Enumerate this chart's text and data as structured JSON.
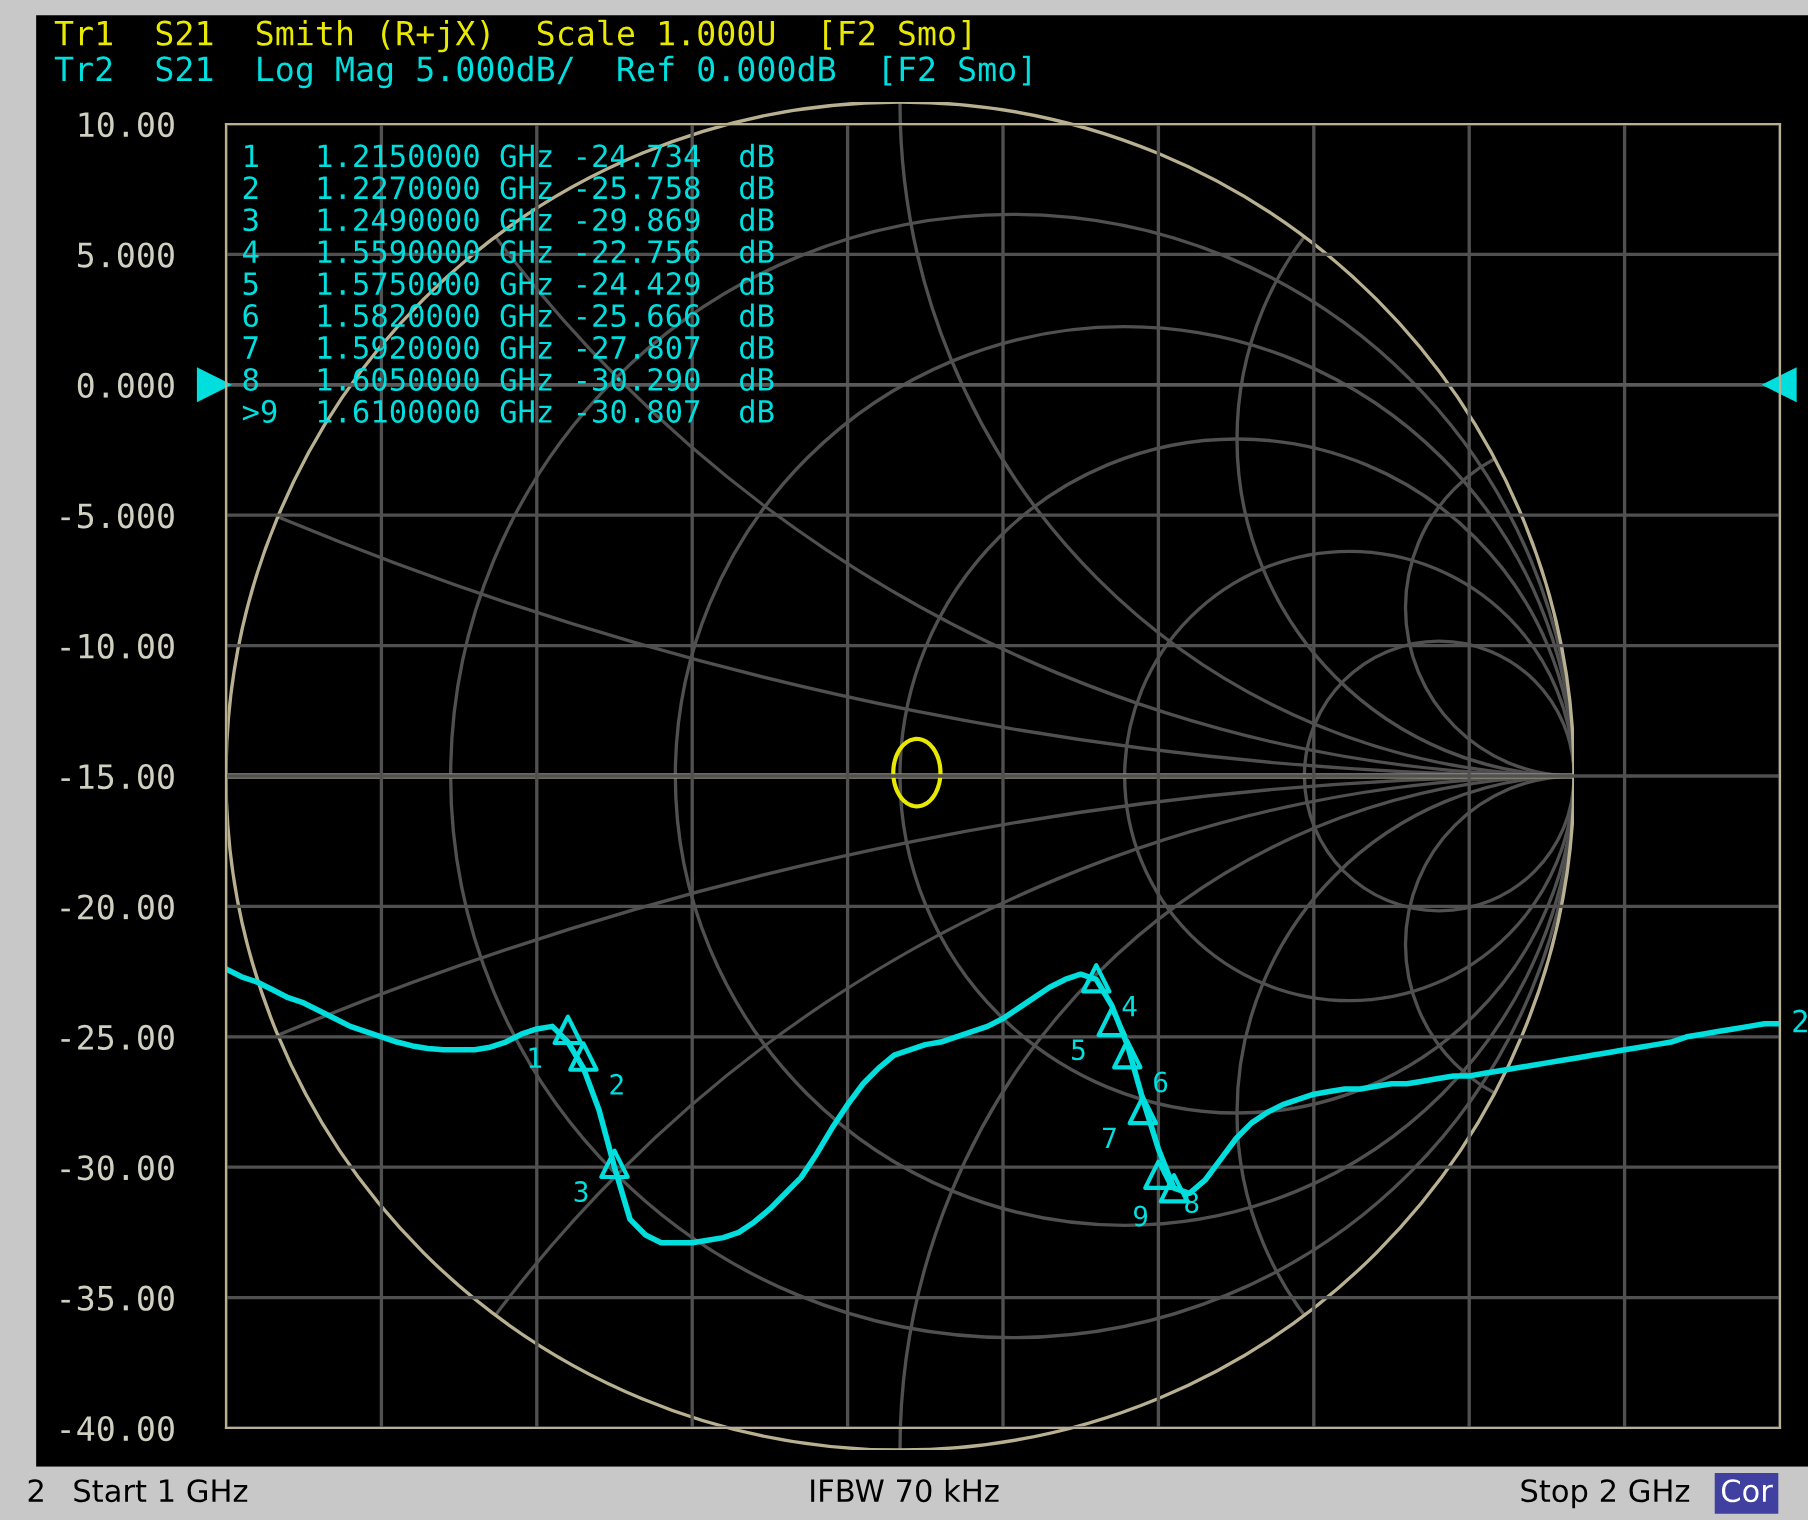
{
  "chart_data": {
    "type": "line",
    "title": "Tr1  S21  Smith (R+jX)  Scale 1.000U  [F2 Smo]",
    "subtitle": "Tr2  S21  Log Mag 5.000dB/  Ref 0.000dB  [F2 Smo]",
    "categories": [
      null,
      null,
      null,
      null,
      null,
      null,
      null,
      null,
      null,
      null,
      null,
      null,
      null,
      null,
      null,
      null,
      null,
      null,
      null,
      null,
      null,
      null,
      null,
      null,
      null,
      null,
      null,
      null,
      null,
      null,
      null,
      null,
      null,
      null,
      null,
      null,
      null,
      null,
      null,
      null,
      null,
      null,
      null,
      null,
      null,
      null,
      null,
      null,
      null,
      null,
      null,
      null,
      null,
      null,
      null,
      null,
      null,
      null,
      null,
      null,
      null,
      null,
      null,
      null,
      null,
      null,
      null,
      null,
      null,
      null,
      null,
      null,
      null,
      null,
      null,
      null,
      null,
      null,
      null,
      null,
      null,
      null,
      null,
      null,
      null,
      null,
      null,
      null,
      null,
      null,
      null,
      null,
      null,
      null,
      null,
      null,
      null,
      null,
      null,
      null,
      null
    ],
    "ylim": [
      -40,
      10
    ],
    "yticks": [
      {
        "value": 10,
        "label": "10.00"
      },
      {
        "value": 5,
        "label": "5.000"
      },
      {
        "value": 0,
        "label": "0.000"
      },
      {
        "value": -5,
        "label": "-5.000"
      },
      {
        "value": -10,
        "label": "-10.00"
      },
      {
        "value": -15,
        "label": "-15.00"
      },
      {
        "value": -20,
        "label": "-20.00"
      },
      {
        "value": -25,
        "label": "-25.00"
      },
      {
        "value": -30,
        "label": "-30.00"
      },
      {
        "value": -35,
        "label": "-35.00"
      },
      {
        "value": -40,
        "label": "-40.00"
      }
    ],
    "tick_labels": "y",
    "grid": true,
    "line_style": "solid",
    "series": [
      {
        "name": "2",
        "color": "#00dede",
        "marker": "none",
        "values": [
          -22.4,
          -22.7,
          -22.9,
          -23.2,
          -23.5,
          -23.7,
          -24.0,
          -24.3,
          -24.6,
          -24.8,
          -25.0,
          -25.2,
          -25.35,
          -25.45,
          -25.5,
          -25.5,
          -25.5,
          -25.4,
          -25.2,
          -24.9,
          -24.7,
          -24.6,
          -25.2,
          -26.2,
          -27.8,
          -30.0,
          -32.0,
          -32.6,
          -32.9,
          -32.9,
          -32.9,
          -32.8,
          -32.7,
          -32.5,
          -32.1,
          -31.6,
          -31.0,
          -30.4,
          -29.5,
          -28.5,
          -27.6,
          -26.8,
          -26.2,
          -25.7,
          -25.5,
          -25.3,
          -25.2,
          -25.0,
          -24.8,
          -24.6,
          -24.3,
          -23.9,
          -23.5,
          -23.1,
          -22.8,
          -22.6,
          -22.8,
          -23.8,
          -25.3,
          -27.4,
          -29.3,
          -30.8,
          -31.0,
          -30.5,
          -29.7,
          -28.9,
          -28.3,
          -27.9,
          -27.6,
          -27.4,
          -27.2,
          -27.1,
          -27.0,
          -27.0,
          -26.9,
          -26.8,
          -26.8,
          -26.7,
          -26.6,
          -26.5,
          -26.5,
          -26.4,
          -26.3,
          -26.2,
          -26.1,
          -26.0,
          -25.9,
          -25.8,
          -25.7,
          -25.6,
          -25.5,
          -25.4,
          -25.3,
          -25.2,
          -25.0,
          -24.9,
          -24.8,
          -24.7,
          -24.6,
          -24.5,
          -24.5
        ]
      },
      {
        "type": "scatter",
        "color": "#00dede",
        "marker": "triangle",
        "values": [
          null,
          null,
          null,
          null,
          null,
          null,
          null,
          null,
          null,
          null,
          null,
          null,
          null,
          null,
          null,
          null,
          null,
          null,
          null,
          null,
          null,
          null,
          -24.734,
          -25.758,
          null,
          -29.869,
          null,
          null,
          null,
          null,
          null,
          null,
          null,
          null,
          null,
          null,
          null,
          null,
          null,
          null,
          null,
          null,
          null,
          null,
          null,
          null,
          null,
          null,
          null,
          null,
          null,
          null,
          null,
          null,
          null,
          null,
          -22.756,
          -24.429,
          -25.666,
          -27.807,
          -30.29,
          -30.807,
          null,
          null,
          null,
          null,
          null,
          null,
          null,
          null,
          null,
          null,
          null,
          null,
          null,
          null,
          null,
          null,
          null,
          null,
          null,
          null,
          null,
          null,
          null,
          null,
          null,
          null,
          null,
          null,
          null,
          null,
          null,
          null,
          null,
          null,
          null,
          null,
          null,
          null,
          null
        ]
      }
    ],
    "ref_lines": [
      {
        "axis": "y",
        "value": 0,
        "color": "#5a5a5a"
      }
    ],
    "annotations": [
      "1   1.2150000 GHz -24.734  dB",
      "2   1.2270000 GHz -25.758  dB",
      "3   1.2490000 GHz -29.869  dB",
      "4   1.5590000 GHz -22.756  dB",
      "5   1.5750000 GHz -24.429  dB",
      "6   1.5820000 GHz -25.666  dB",
      "7   1.5920000 GHz -27.807  dB",
      "8   1.6050000 GHz -30.290  dB",
      ">9  1.6100000 GHz -30.807  dB",
      "1",
      "2",
      "3",
      "4",
      "5",
      "6",
      "7",
      "8",
      "9",
      "2",
      "Start 1 GHz",
      "IFBW 70 kHz",
      "Stop 2 GHz",
      "Cor"
    ]
  }
}
